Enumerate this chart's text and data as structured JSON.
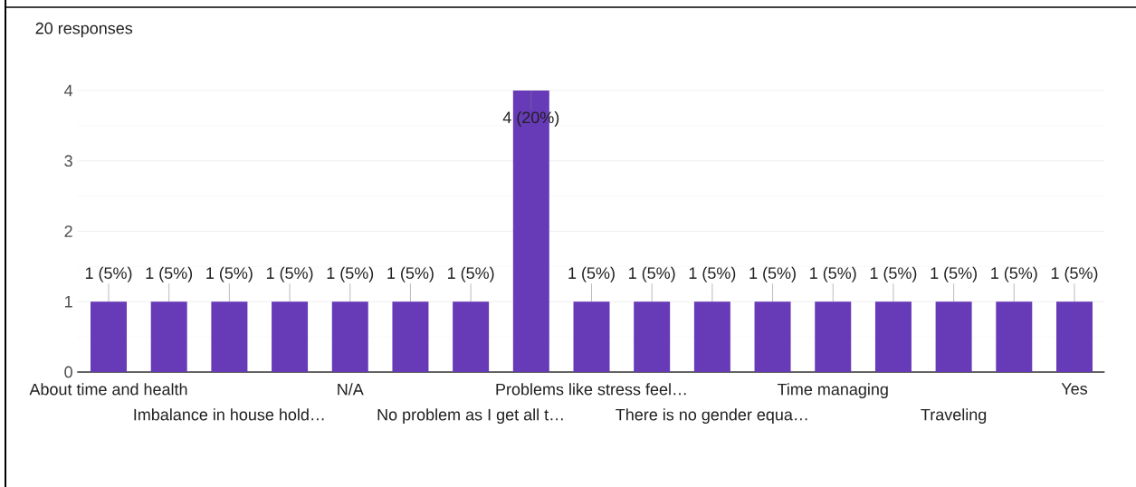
{
  "chart_data": {
    "type": "bar",
    "subtitle": "20 responses",
    "categories": [
      "About time and health",
      null,
      "Imbalance in house hold…",
      null,
      "N/A",
      null,
      "No problem as I get all t…",
      null,
      "Problems like stress feel…",
      null,
      "There is no gender equa…",
      null,
      "Time managing",
      null,
      "Traveling",
      null,
      "Yes"
    ],
    "values": [
      1,
      1,
      1,
      1,
      1,
      1,
      1,
      4,
      1,
      1,
      1,
      1,
      1,
      1,
      1,
      1,
      1
    ],
    "value_labels": [
      "1 (5%)",
      "1 (5%)",
      "1 (5%)",
      "1 (5%)",
      "1 (5%)",
      "1 (5%)",
      "1 (5%)",
      "4 (20%)",
      "1 (5%)",
      "1 (5%)",
      "1 (5%)",
      "1 (5%)",
      "1 (5%)",
      "1 (5%)",
      "1 (5%)",
      "1 (5%)",
      "1 (5%)"
    ],
    "color": "#673ab7",
    "ylim": [
      0,
      4
    ],
    "yticks": [
      0,
      1,
      2,
      3,
      4
    ],
    "grid": "y"
  }
}
